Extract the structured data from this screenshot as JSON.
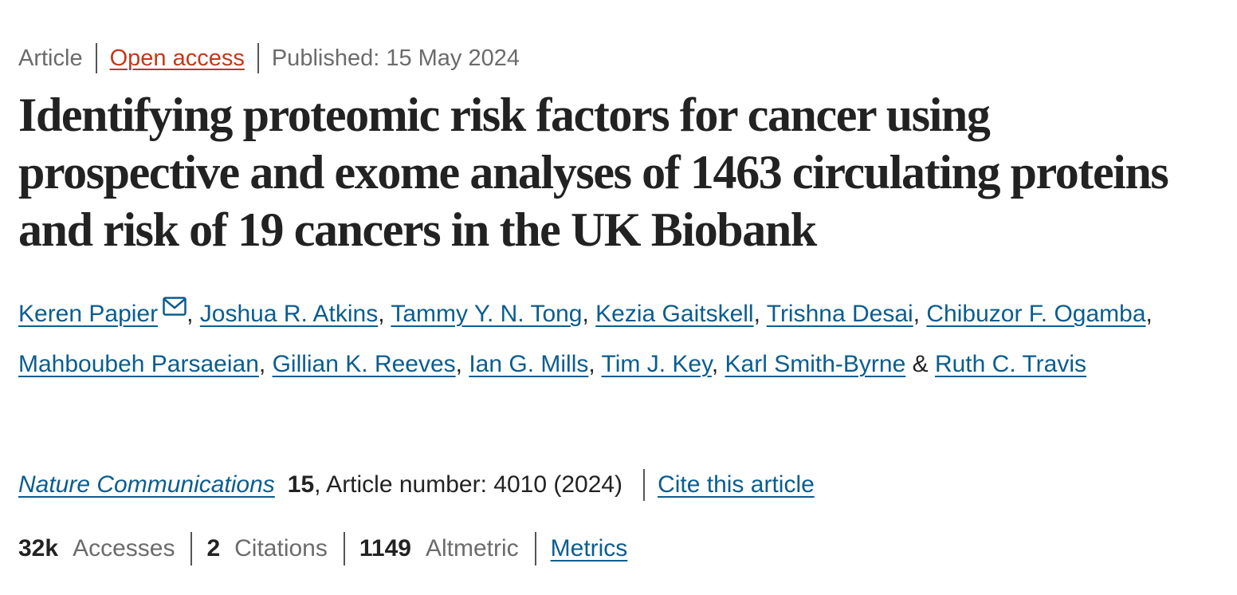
{
  "meta": {
    "type": "Article",
    "open_access": "Open access",
    "published": "Published: 15 May 2024"
  },
  "title": "Identifying proteomic risk factors for cancer using prospective and exome analyses of 1463 circulating proteins and risk of 19 cancers in the UK Biobank",
  "authors": [
    "Keren Papier",
    "Joshua R. Atkins",
    "Tammy Y. N. Tong",
    "Kezia Gaitskell",
    "Trishna Desai",
    "Chibuzor F. Ogamba",
    "Mahboubeh Parsaeian",
    "Gillian K. Reeves",
    "Ian G. Mills",
    "Tim J. Key",
    "Karl Smith-Byrne",
    "Ruth C. Travis"
  ],
  "author_separator": ", ",
  "author_last_separator": " & ",
  "journal": {
    "name": "Nature Communications",
    "volume": "15",
    "article_info": ", Article number: 4010 (2024)",
    "cite": "Cite this article"
  },
  "metrics": {
    "accesses_value": "32k",
    "accesses_label": "Accesses",
    "citations_value": "2",
    "citations_label": "Citations",
    "altmetric_value": "1149",
    "altmetric_label": "Altmetric",
    "metrics_link": "Metrics"
  },
  "icons": {
    "corresponding_author": "mail-icon"
  },
  "colors": {
    "link": "#0a5d8f",
    "open_access": "#c0391b",
    "text": "#222222",
    "muted": "#6b6b6b"
  }
}
